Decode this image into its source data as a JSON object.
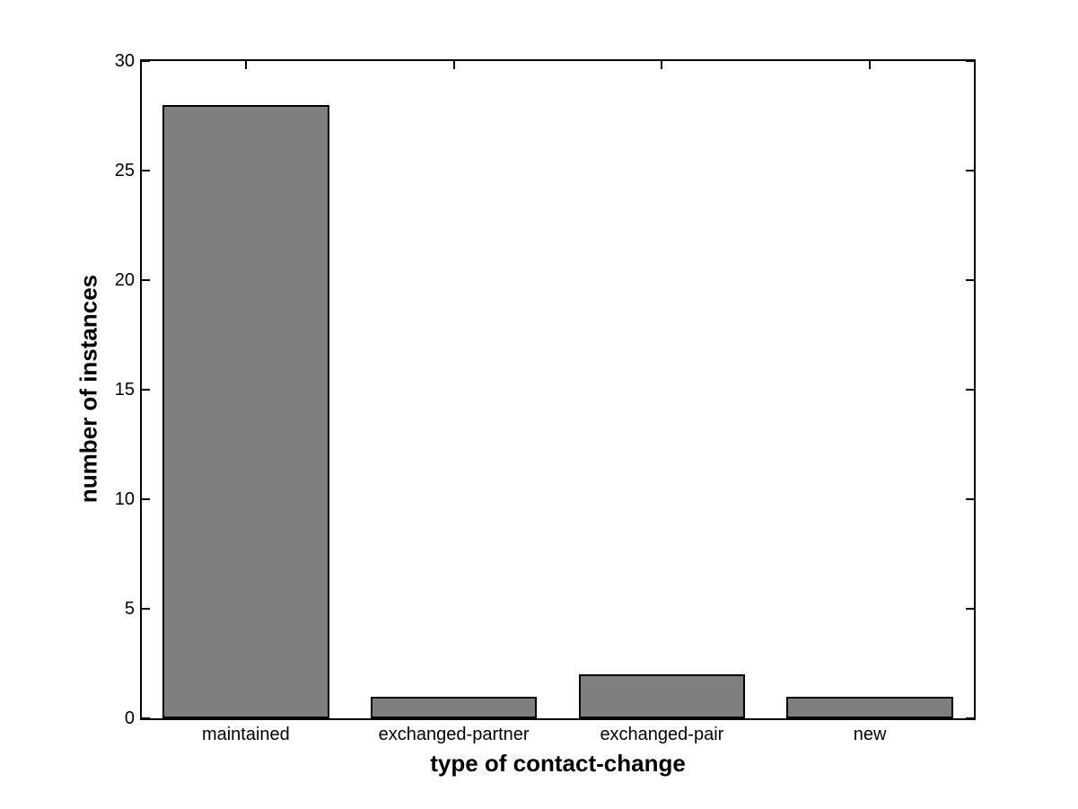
{
  "figure": {
    "background": "#ffffff",
    "axis_color": "#000000"
  },
  "chart_data": {
    "type": "bar",
    "categories": [
      "maintained",
      "exchanged-partner",
      "exchanged-pair",
      "new"
    ],
    "values": [
      28,
      1,
      2,
      1
    ],
    "title": "",
    "xlabel": "type of contact-change",
    "ylabel": "number of instances",
    "ylim": [
      0,
      30
    ],
    "yticks": [
      0,
      5,
      10,
      15,
      20,
      25,
      30
    ],
    "bar_color": "#7f7f7f",
    "bar_edge_color": "#000000",
    "bar_rel_width": 0.8,
    "grid": false,
    "legend": null,
    "tick_direction": "in",
    "box": true
  }
}
